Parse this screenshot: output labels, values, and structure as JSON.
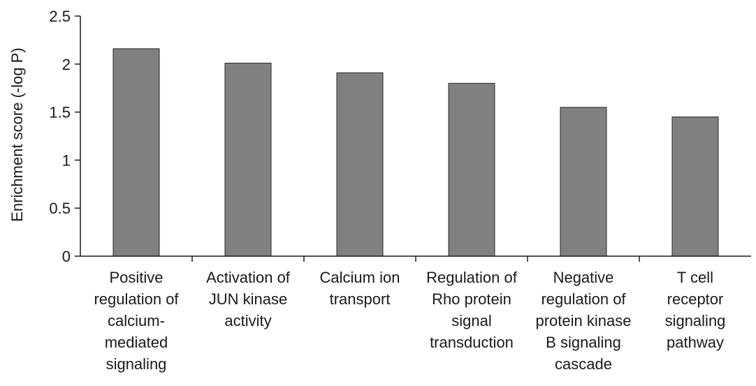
{
  "chart_data": {
    "type": "bar",
    "title": "",
    "xlabel": "",
    "ylabel": "Enrichment score (-log P)",
    "ylim": [
      0,
      2.5
    ],
    "yticks": [
      "0",
      "0.5",
      "1",
      "1.5",
      "2",
      "2.5"
    ],
    "grid": false,
    "bar_color": "#808080",
    "categories": [
      [
        "Positive",
        "regulation of",
        "calcium-",
        "mediated",
        "signaling"
      ],
      [
        "Activation of",
        "JUN kinase",
        "activity"
      ],
      [
        "Calcium ion",
        "transport"
      ],
      [
        "Regulation of",
        "Rho protein",
        "signal",
        "transduction"
      ],
      [
        "Negative",
        "regulation of",
        "protein kinase",
        "B signaling",
        "cascade"
      ],
      [
        "T cell",
        "receptor",
        "signaling",
        "pathway"
      ]
    ],
    "values": [
      2.16,
      2.01,
      1.91,
      1.8,
      1.55,
      1.45
    ]
  }
}
